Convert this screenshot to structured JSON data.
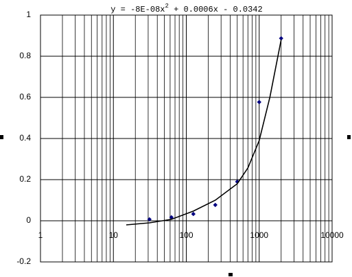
{
  "chart_data": {
    "type": "scatter",
    "equation": [
      "y = -8E-08x",
      "2",
      " + 0.0006x - 0.0342"
    ],
    "xscale": "log",
    "xlim": [
      1,
      10000
    ],
    "xticks": [
      1,
      10,
      100,
      1000,
      10000
    ],
    "ylim": [
      -0.2,
      1
    ],
    "yticks": [
      -0.2,
      {
        "value": 0,
        "label": "0"
      },
      0.2,
      0.4,
      0.6,
      0.8,
      {
        "value": 1,
        "label": "1"
      }
    ],
    "grid": true,
    "minor_grid": true,
    "series": [
      {
        "color": "#000080",
        "marker": "diamond",
        "x": [
          31.25,
          62.5,
          125,
          250,
          500,
          1000,
          2000
        ],
        "values": [
          0.007,
          0.017,
          0.033,
          0.077,
          0.19,
          0.577,
          0.887
        ]
      },
      {
        "color": "#000000",
        "marker": "line",
        "x": [
          15,
          31.25,
          62.5,
          125,
          250,
          500,
          700,
          1000,
          1400,
          2000
        ],
        "values": [
          -0.02,
          -0.01,
          0.007,
          0.047,
          0.1,
          0.18,
          0.257,
          0.39,
          0.6,
          0.88
        ]
      }
    ]
  }
}
